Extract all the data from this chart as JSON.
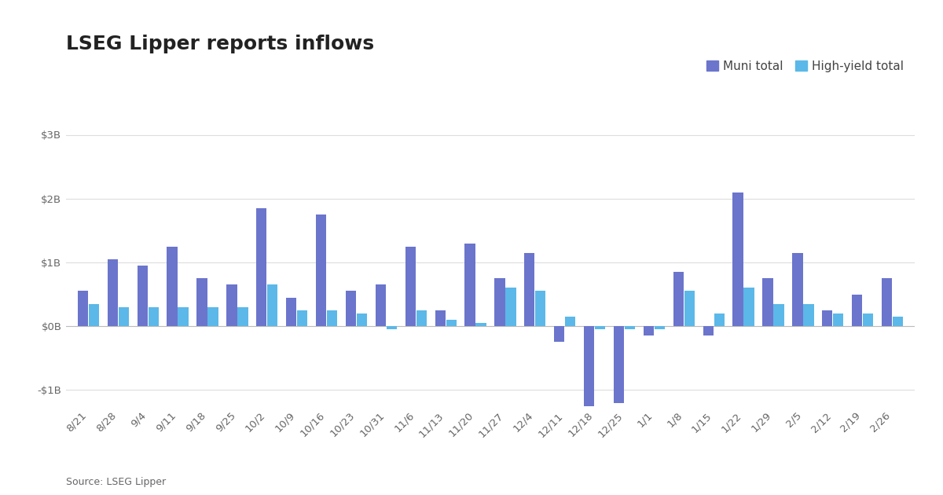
{
  "title": "LSEG Lipper reports inflows",
  "source": "Source: LSEG Lipper",
  "categories": [
    "8/21",
    "8/28",
    "9/4",
    "9/11",
    "9/18",
    "9/25",
    "10/2",
    "10/9",
    "10/16",
    "10/23",
    "10/31",
    "11/6",
    "11/13",
    "11/20",
    "11/27",
    "12/4",
    "12/11",
    "12/18",
    "12/25",
    "1/1",
    "1/8",
    "1/15",
    "1/22",
    "1/29",
    "2/5",
    "2/12",
    "2/19",
    "2/26"
  ],
  "muni_total": [
    0.55,
    1.05,
    0.95,
    1.25,
    0.75,
    0.65,
    1.85,
    0.45,
    1.75,
    0.55,
    0.65,
    1.25,
    0.25,
    1.3,
    0.75,
    1.15,
    -0.25,
    -1.3,
    -1.2,
    -0.15,
    0.85,
    -0.15,
    2.1,
    0.75,
    1.15,
    0.25,
    0.5,
    0.75
  ],
  "hy_total": [
    0.35,
    0.3,
    0.3,
    0.3,
    0.3,
    0.3,
    0.65,
    0.25,
    0.25,
    0.2,
    -0.05,
    0.25,
    0.1,
    0.05,
    0.6,
    0.55,
    0.15,
    -0.05,
    -0.05,
    -0.05,
    0.55,
    0.2,
    0.6,
    0.35,
    0.35,
    0.2,
    0.2,
    0.15
  ],
  "muni_color": "#6B75CC",
  "hy_color": "#5BB8E8",
  "ylim": [
    -1.25,
    3.25
  ],
  "yticks": [
    -1.0,
    0.0,
    1.0,
    2.0,
    3.0
  ],
  "ytick_labels": [
    "-$1B",
    "$0B",
    "$1B",
    "$2B",
    "$3B"
  ],
  "bg_color": "#ffffff",
  "grid_color": "#dddddd",
  "title_fontsize": 18,
  "legend_fontsize": 11,
  "tick_fontsize": 9.5,
  "source_fontsize": 9
}
